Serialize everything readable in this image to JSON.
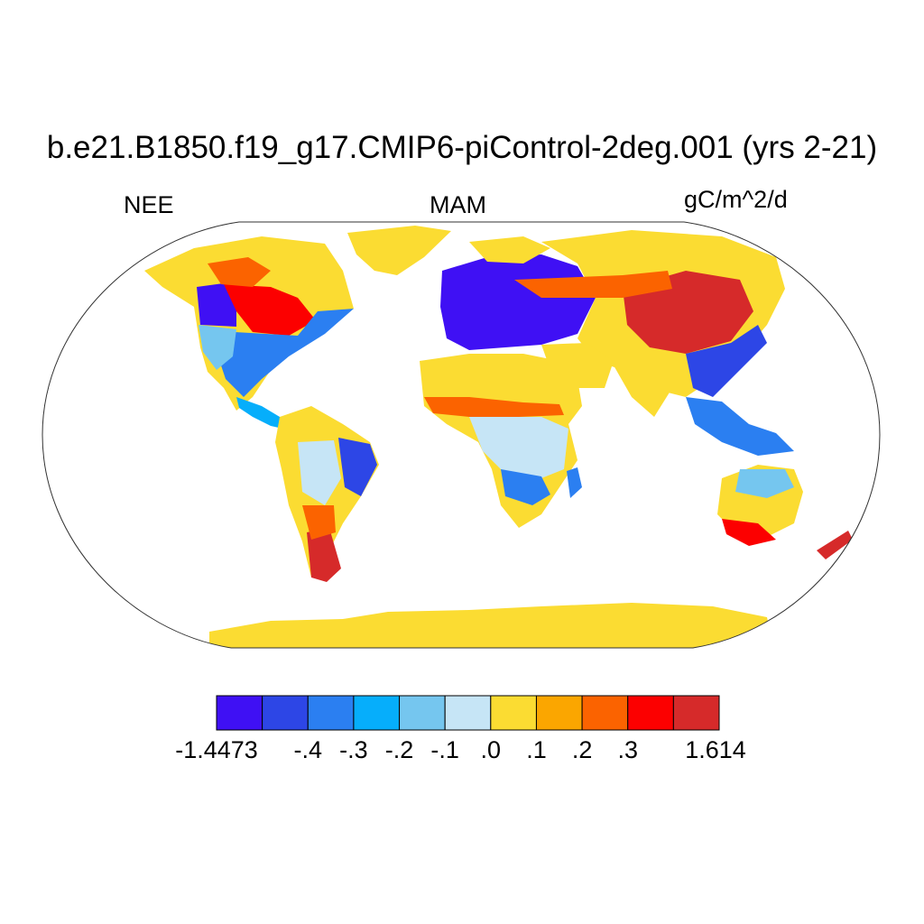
{
  "title": "b.e21.B1850.f19_g17.CMIP6-piControl-2deg.001 (yrs 2-21)",
  "subtitle_left": "NEE",
  "subtitle_center": "MAM",
  "subtitle_right": "gC/m^2/d",
  "colorbar": {
    "colors": [
      "#3f10f4",
      "#2d46e6",
      "#2b7ff1",
      "#06aefb",
      "#75c6ef",
      "#c6e5f6",
      "#fbdc32",
      "#fba600",
      "#fb6300",
      "#fc0000",
      "#d62a2a"
    ],
    "labels": [
      "-1.4473",
      "-.4",
      "-.3",
      "-.2",
      "-.1",
      ".0",
      ".1",
      ".2",
      ".3",
      "1.614"
    ],
    "boundaries": [
      -1.4473,
      -0.5,
      -0.4,
      -0.3,
      -0.2,
      -0.1,
      0.0,
      0.1,
      0.2,
      0.3,
      0.4,
      1.614
    ]
  },
  "colors": {
    "land_outline": "#222222",
    "ocean": "#ffffff"
  }
}
